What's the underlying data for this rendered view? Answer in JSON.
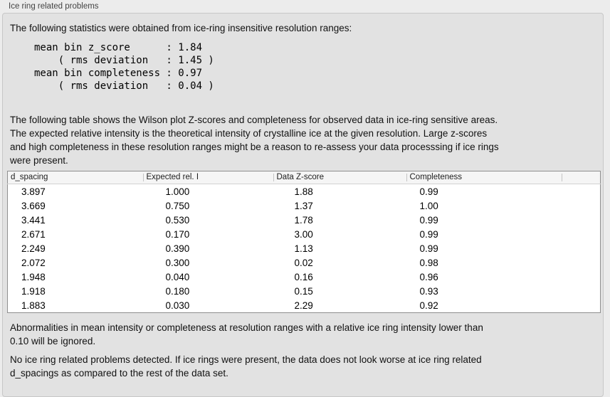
{
  "panel": {
    "title": "Ice ring related problems"
  },
  "intro": {
    "text": "The following statistics were obtained from ice-ring insensitive resolution ranges:"
  },
  "stats_block": {
    "text": "mean bin z_score      : 1.84\n    ( rms deviation   : 1.45 )\nmean bin completeness : 0.97\n    ( rms deviation   : 0.04 )"
  },
  "description": {
    "text": "The following table shows the Wilson plot Z-scores and completeness for observed data in ice-ring sensitive areas.\nThe expected relative intensity is the theoretical intensity of crystalline ice at the given resolution. Large z-scores\nand high completeness in these resolution ranges might be a reason to re-assess your data processsing if ice rings\nwere present."
  },
  "table": {
    "headers": [
      "d_spacing",
      "Expected rel. I",
      "Data Z-score",
      "Completeness"
    ],
    "rows": [
      [
        "3.897",
        "1.000",
        "1.88",
        "0.99"
      ],
      [
        "3.669",
        "0.750",
        "1.37",
        "1.00"
      ],
      [
        "3.441",
        "0.530",
        "1.78",
        "0.99"
      ],
      [
        "2.671",
        "0.170",
        "3.00",
        "0.99"
      ],
      [
        "2.249",
        "0.390",
        "1.13",
        "0.99"
      ],
      [
        "2.072",
        "0.300",
        "0.02",
        "0.98"
      ],
      [
        "1.948",
        "0.040",
        "0.16",
        "0.96"
      ],
      [
        "1.918",
        "0.180",
        "0.15",
        "0.93"
      ],
      [
        "1.883",
        "0.030",
        "2.29",
        "0.92"
      ]
    ]
  },
  "notes": {
    "ignore_note": "Abnormalities in mean intensity or completeness at resolution ranges with a relative ice ring intensity lower than\n0.10 will be ignored.",
    "conclusion": "No ice ring related problems detected. If ice rings were present, the data does not look worse at ice ring related\nd_spacings as compared to the rest of the data set."
  },
  "colors": {
    "page_bg": "#ececec",
    "panel_bg": "#e2e2e2",
    "panel_border": "#c7c7c7",
    "table_bg": "#ffffff",
    "table_border": "#8f8f8f",
    "table_header_bg": "#f5f5f5",
    "text": "#111111"
  }
}
